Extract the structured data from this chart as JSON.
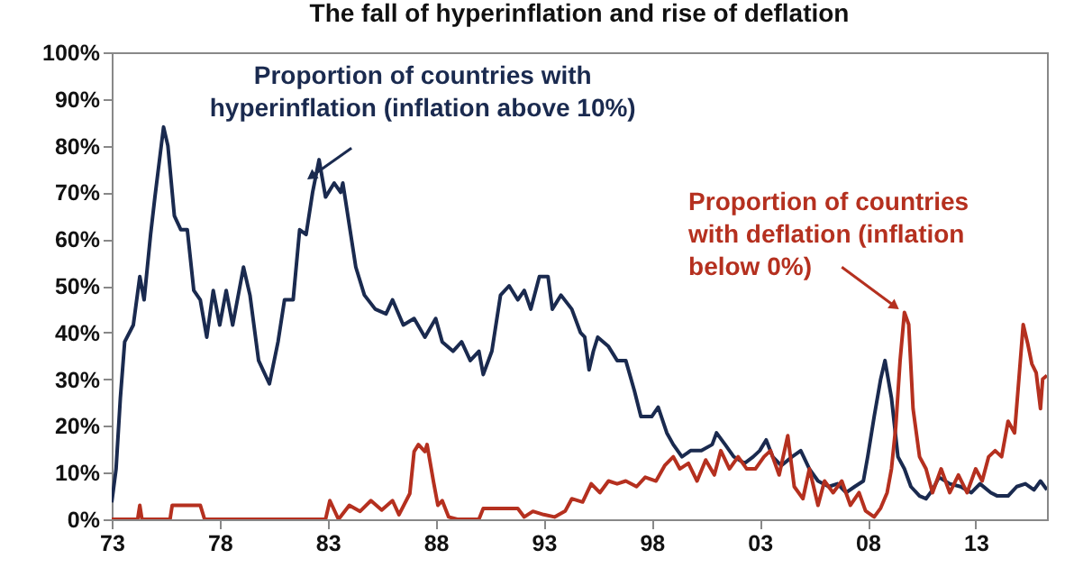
{
  "chart_data": {
    "type": "line",
    "title": "The fall of hyperinflation and rise of deflation",
    "annotations": [
      {
        "text": "Proportion of countries with\nhyperinflation (inflation above 10%)",
        "x": 1982.3,
        "y": 73.6
      },
      {
        "text": "Proportion of countries\nwith deflation (inflation\nbelow 0%)",
        "x": 2009.2,
        "y": 45.8
      }
    ],
    "xlim": [
      1973,
      2016.3
    ],
    "xticks": [
      {
        "value": 1973,
        "label": "73"
      },
      {
        "value": 1978,
        "label": "78"
      },
      {
        "value": 1983,
        "label": "83"
      },
      {
        "value": 1988,
        "label": "88"
      },
      {
        "value": 1993,
        "label": "93"
      },
      {
        "value": 1998,
        "label": "98"
      },
      {
        "value": 2003,
        "label": "03"
      },
      {
        "value": 2008,
        "label": "08"
      },
      {
        "value": 2013,
        "label": "13"
      }
    ],
    "ylim": [
      0,
      100
    ],
    "yticks": [
      {
        "value": 0,
        "label": "0%"
      },
      {
        "value": 10,
        "label": "10%"
      },
      {
        "value": 20,
        "label": "20%"
      },
      {
        "value": 30,
        "label": "30%"
      },
      {
        "value": 40,
        "label": "40%"
      },
      {
        "value": 50,
        "label": "50%"
      },
      {
        "value": 60,
        "label": "60%"
      },
      {
        "value": 70,
        "label": "70%"
      },
      {
        "value": 80,
        "label": "80%"
      },
      {
        "value": 90,
        "label": "90%"
      },
      {
        "value": 100,
        "label": "100%"
      }
    ],
    "grid": false,
    "series": [
      {
        "color": "#1a2a4f",
        "x": [
          1973.0,
          1973.2,
          1973.4,
          1973.6,
          1974.0,
          1974.3,
          1974.5,
          1974.8,
          1975.0,
          1975.4,
          1975.6,
          1975.9,
          1976.2,
          1976.5,
          1976.8,
          1977.1,
          1977.4,
          1977.7,
          1978.0,
          1978.3,
          1978.6,
          1978.9,
          1979.1,
          1979.4,
          1979.8,
          1980.3,
          1980.7,
          1981.0,
          1981.4,
          1981.7,
          1982.0,
          1982.3,
          1982.6,
          1982.9,
          1983.3,
          1983.6,
          1983.7,
          1984.0,
          1984.3,
          1984.7,
          1985.2,
          1985.7,
          1986.0,
          1986.5,
          1987.0,
          1987.5,
          1988.0,
          1988.3,
          1988.8,
          1989.2,
          1989.6,
          1990.0,
          1990.2,
          1990.6,
          1991.0,
          1991.4,
          1991.8,
          1992.1,
          1992.4,
          1992.8,
          1993.2,
          1993.4,
          1993.8,
          1994.3,
          1994.7,
          1994.9,
          1995.1,
          1995.3,
          1995.5,
          1996.0,
          1996.4,
          1996.8,
          1997.2,
          1997.5,
          1998.0,
          1998.3,
          1998.7,
          1999.0,
          1999.4,
          1999.8,
          2000.3,
          2000.8,
          2001.0,
          2001.4,
          2001.8,
          2002.3,
          2002.7,
          2003.0,
          2003.3,
          2003.6,
          2004.0,
          2004.5,
          2004.9,
          2005.3,
          2005.7,
          2006.2,
          2006.6,
          2007.0,
          2007.4,
          2007.8,
          2008.0,
          2008.3,
          2008.6,
          2008.8,
          2009.1,
          2009.4,
          2009.7,
          2010.0,
          2010.4,
          2010.7,
          2011.0,
          2011.3,
          2011.8,
          2012.3,
          2012.8,
          2013.2,
          2013.7,
          2014.0,
          2014.5,
          2014.9,
          2015.3,
          2015.7,
          2016.0,
          2016.3
        ],
        "values": [
          3.6,
          10.7,
          26,
          38,
          41.6,
          52,
          47,
          61,
          69,
          84,
          80,
          65,
          62,
          62,
          49,
          47,
          39,
          49,
          41.6,
          49,
          41.6,
          49,
          54,
          48,
          34,
          29,
          38,
          47,
          47,
          62,
          61,
          70,
          77,
          69,
          72,
          70,
          72,
          63,
          54,
          48,
          45,
          44,
          47,
          41.6,
          43,
          39,
          43,
          38,
          36,
          38,
          34,
          36,
          31,
          36,
          48,
          50,
          47,
          49,
          45,
          52,
          52,
          45,
          48,
          45,
          40,
          39,
          32,
          36,
          39,
          37,
          34,
          34,
          27.5,
          22,
          22,
          24,
          18.5,
          16,
          13.4,
          14.7,
          14.7,
          16,
          18.5,
          16,
          13.4,
          12,
          13.4,
          14.7,
          17,
          13.4,
          11.5,
          13.4,
          14.7,
          10.8,
          8.2,
          7,
          7.6,
          5.7,
          7,
          8.2,
          13.4,
          22,
          30,
          34,
          26,
          13.4,
          10.8,
          7,
          5,
          4.4,
          6.3,
          9,
          7.6,
          7,
          5.7,
          7.6,
          5.7,
          5,
          5,
          7,
          7.6,
          6.3,
          8.2,
          6.3
        ]
      },
      {
        "color": "#b5301f",
        "x": [
          1973.0,
          1974.2,
          1974.3,
          1974.4,
          1975.7,
          1975.8,
          1977.1,
          1977.3,
          1982.9,
          1983.1,
          1983.5,
          1984.0,
          1984.5,
          1985.0,
          1985.5,
          1986.0,
          1986.3,
          1986.8,
          1987.0,
          1987.2,
          1987.5,
          1987.6,
          1987.9,
          1988.1,
          1988.3,
          1988.6,
          1989.0,
          1990.0,
          1990.2,
          1991.8,
          1992.1,
          1992.5,
          1993.0,
          1993.5,
          1994.0,
          1994.3,
          1994.8,
          1995.2,
          1995.6,
          1996.0,
          1996.4,
          1996.8,
          1997.3,
          1997.7,
          1998.2,
          1998.6,
          1999.0,
          1999.3,
          1999.7,
          2000.1,
          2000.5,
          2000.9,
          2001.2,
          2001.6,
          2002.0,
          2002.4,
          2002.8,
          2003.2,
          2003.5,
          2003.9,
          2004.3,
          2004.6,
          2005.0,
          2005.3,
          2005.7,
          2006.0,
          2006.4,
          2006.8,
          2007.2,
          2007.6,
          2007.9,
          2008.3,
          2008.6,
          2008.9,
          2009.1,
          2009.3,
          2009.5,
          2009.7,
          2009.9,
          2010.1,
          2010.4,
          2010.7,
          2011.0,
          2011.4,
          2011.8,
          2012.2,
          2012.6,
          2013.0,
          2013.3,
          2013.6,
          2013.9,
          2014.2,
          2014.5,
          2014.8,
          2015.0,
          2015.2,
          2015.4,
          2015.6,
          2015.8,
          2016.0,
          2016.1,
          2016.3
        ],
        "values": [
          0,
          0,
          3,
          0,
          0,
          3,
          3,
          0,
          0,
          4,
          0,
          3,
          1.7,
          4,
          2,
          4,
          1,
          5.5,
          14.5,
          16,
          14.5,
          16,
          8,
          3,
          4,
          0.5,
          0,
          0,
          2.3,
          2.3,
          0.5,
          1.7,
          1,
          0.5,
          1.8,
          4.4,
          3.7,
          7.6,
          5.7,
          8.2,
          7.6,
          8.2,
          7,
          9,
          8.2,
          11.5,
          13.4,
          10.8,
          12,
          8.2,
          12.7,
          9.5,
          14.7,
          10.8,
          13.4,
          10.8,
          10.8,
          13.4,
          14.7,
          9.5,
          17.9,
          7,
          4.4,
          10.8,
          3,
          8.2,
          5.7,
          8.2,
          3,
          5.7,
          1.8,
          0.5,
          2.4,
          5.7,
          10.8,
          19.8,
          34,
          44.3,
          41.7,
          23.7,
          13.4,
          10.8,
          5.7,
          10.8,
          5.7,
          9.5,
          5.7,
          10.8,
          8.2,
          13.4,
          14.7,
          13.4,
          21,
          18.5,
          30,
          41.7,
          37.8,
          33.3,
          31.4,
          23.7,
          30,
          30.8
        ]
      }
    ]
  }
}
